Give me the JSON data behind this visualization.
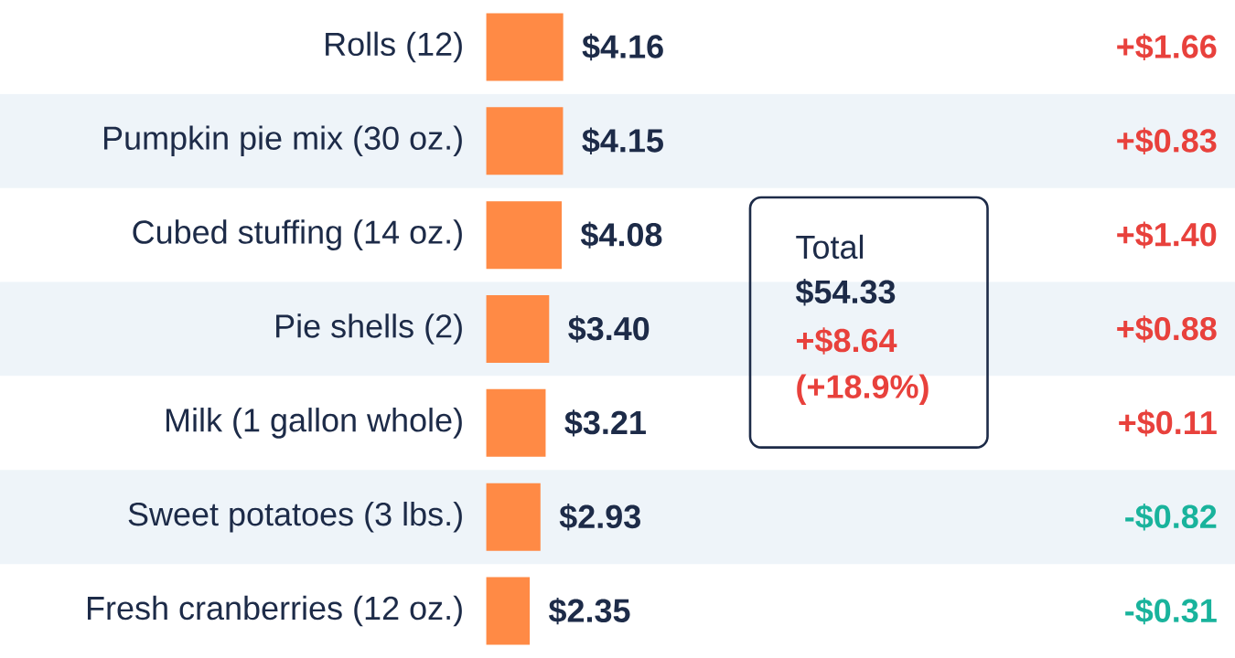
{
  "chart_data": {
    "type": "bar",
    "orientation": "horizontal",
    "categories": [
      "Rolls (12)",
      "Pumpkin pie mix (30 oz.)",
      "Cubed stuffing (14 oz.)",
      "Pie shells (2)",
      "Milk (1 gallon whole)",
      "Sweet potatoes (3 lbs.)",
      "Fresh cranberries (12 oz.)"
    ],
    "values": [
      4.16,
      4.15,
      4.08,
      3.4,
      3.21,
      2.93,
      2.35
    ],
    "value_labels": [
      "$4.16",
      "$4.15",
      "$4.08",
      "$3.40",
      "$3.21",
      "$2.93",
      "$2.35"
    ],
    "color": "#ff8a45",
    "annotations": [
      "+$1.66",
      "+$0.83",
      "+$1.40",
      "+$0.88",
      "+$0.11",
      "-$0.82",
      "-$0.31",
      "Total",
      "$54.33",
      "+$8.64",
      "(+18.9%)"
    ]
  }
}
